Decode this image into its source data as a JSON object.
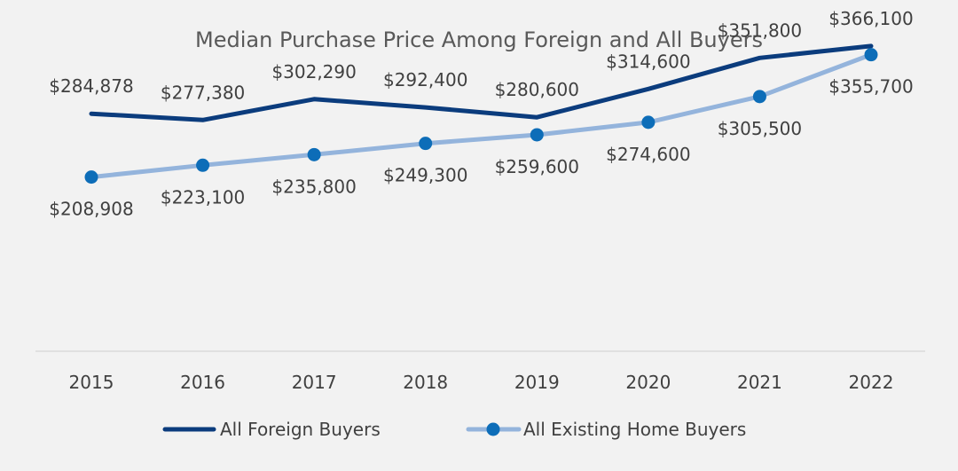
{
  "chart_data": {
    "type": "line",
    "title": "Median Purchase Price Among Foreign and All Buyers",
    "xlabel": "",
    "ylabel": "",
    "categories": [
      "2015",
      "2016",
      "2017",
      "2018",
      "2019",
      "2020",
      "2021",
      "2022"
    ],
    "ylim": [
      0,
      400000
    ],
    "grid": false,
    "legend_position": "bottom",
    "series": [
      {
        "name": "All Foreign Buyers",
        "color": "#0b3c7d",
        "marker": "none",
        "values": [
          284878,
          277380,
          302290,
          292400,
          280600,
          314600,
          351800,
          366100
        ],
        "labels": [
          "$284,878",
          "$277,380",
          "$302,290",
          "$292,400",
          "$280,600",
          "$314,600",
          "$351,800",
          "$366,100"
        ]
      },
      {
        "name": "All Existing Home Buyers",
        "color": "#94b4dc",
        "marker_color": "#0d6db8",
        "marker": "circle",
        "values": [
          208908,
          223100,
          235800,
          249300,
          259600,
          274600,
          305500,
          355700
        ],
        "labels": [
          "$208,908",
          "$223,100",
          "$235,800",
          "$249,300",
          "$259,600",
          "$274,600",
          "$305,500",
          "$355,700"
        ]
      }
    ],
    "colors": {
      "background": "#f2f2f2",
      "text": "#404040",
      "title": "#595959",
      "axis": "#d9d9d9"
    }
  }
}
